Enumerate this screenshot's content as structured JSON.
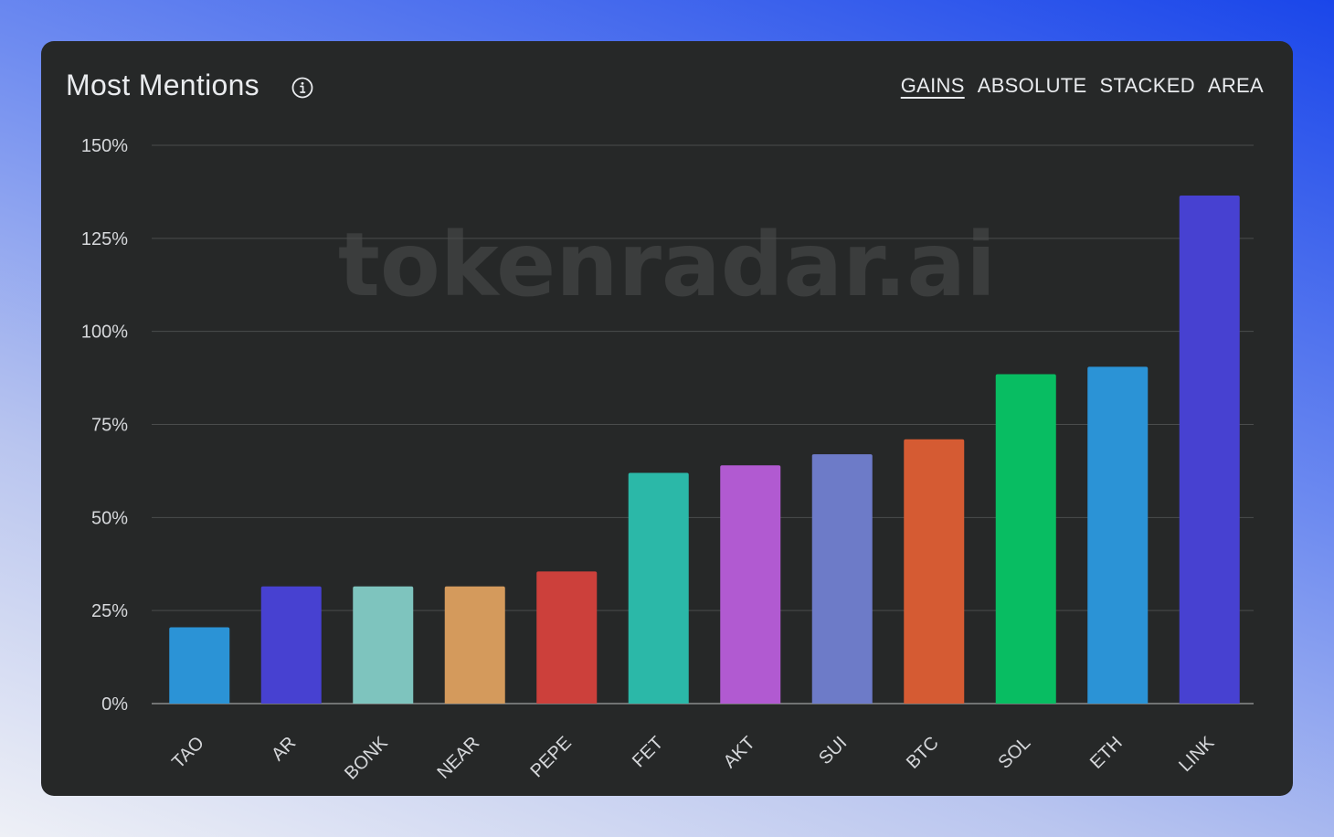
{
  "header": {
    "title": "Most Mentions",
    "info_icon": "info-icon",
    "modes": [
      {
        "label": "GAINS",
        "active": true
      },
      {
        "label": "ABSOLUTE",
        "active": false
      },
      {
        "label": "STACKED",
        "active": false
      },
      {
        "label": "AREA",
        "active": false
      }
    ]
  },
  "watermark": "tokenradar.ai",
  "colors": {
    "card_bg": "#262828",
    "grid": "#4a4c4c",
    "axis": "#8a8c8c",
    "text": "#d6d8db",
    "watermark": "#3b3d3d"
  },
  "chart_data": {
    "type": "bar",
    "title": "",
    "xlabel": "",
    "ylabel": "",
    "ylim": [
      0,
      150
    ],
    "yticks": [
      0,
      25,
      50,
      75,
      100,
      125,
      150
    ],
    "ytick_labels": [
      "0%",
      "25%",
      "50%",
      "75%",
      "100%",
      "125%",
      "150%"
    ],
    "grid": true,
    "categories": [
      "TAO",
      "AR",
      "BONK",
      "NEAR",
      "PEPE",
      "FET",
      "AKT",
      "SUI",
      "BTC",
      "SOL",
      "ETH",
      "LINK"
    ],
    "values": [
      20.5,
      31.5,
      31.5,
      31.5,
      35.5,
      62,
      64,
      67,
      71,
      88.5,
      90.5,
      136.5
    ],
    "bar_colors": [
      "#2b93d6",
      "#4741d1",
      "#7ec4be",
      "#d49a5c",
      "#cc403b",
      "#2bb8a8",
      "#b15ad1",
      "#6d7bc8",
      "#d55b33",
      "#08bd62",
      "#2b93d6",
      "#4741d1"
    ]
  }
}
